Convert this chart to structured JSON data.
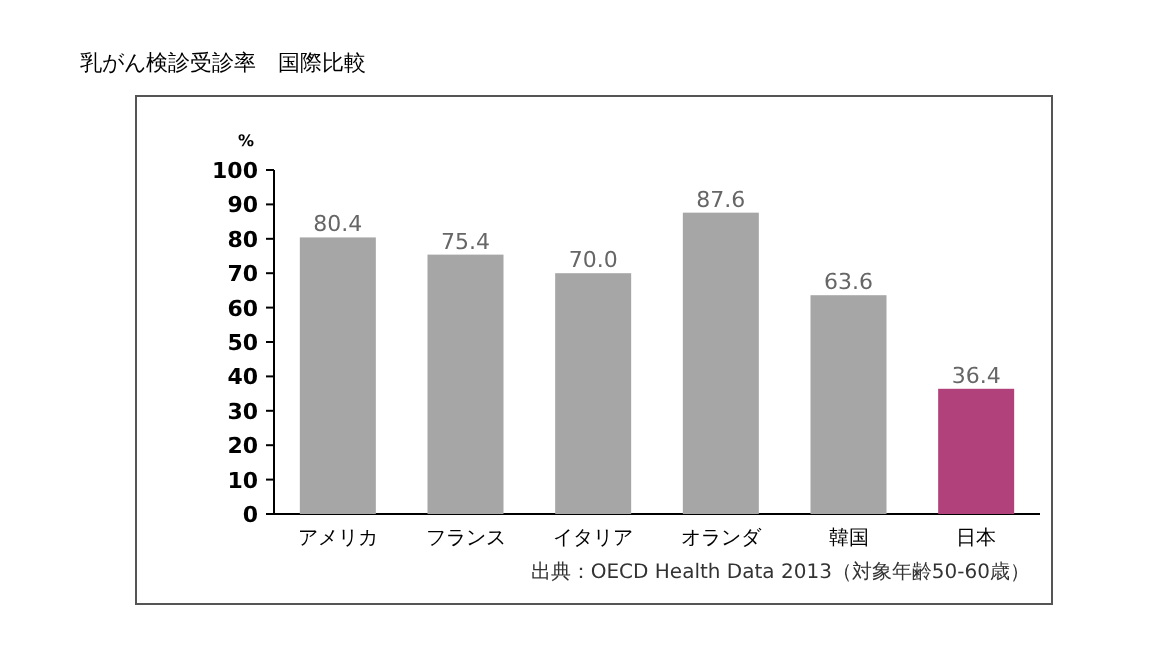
{
  "chart_data": {
    "type": "bar",
    "title": "乳がん検診受診率　国際比較",
    "ylabel": "%",
    "categories": [
      "アメリカ",
      "フランス",
      "イタリア",
      "オランダ",
      "韓国",
      "日本"
    ],
    "values": [
      80.4,
      75.4,
      70.0,
      87.6,
      63.6,
      36.4
    ],
    "colors": [
      "#a6a6a6",
      "#a6a6a6",
      "#a6a6a6",
      "#a6a6a6",
      "#a6a6a6",
      "#b0417a"
    ],
    "value_labels": [
      "80.4",
      "75.4",
      "70.0",
      "87.6",
      "63.6",
      "36.4"
    ],
    "ylim": [
      0,
      100
    ],
    "yticks": [
      0,
      10,
      20,
      30,
      40,
      50,
      60,
      70,
      80,
      90,
      100
    ],
    "grid": false,
    "annotations": [
      "出典：OECD Health Data 2013（対象年齢50-60歳）"
    ]
  }
}
